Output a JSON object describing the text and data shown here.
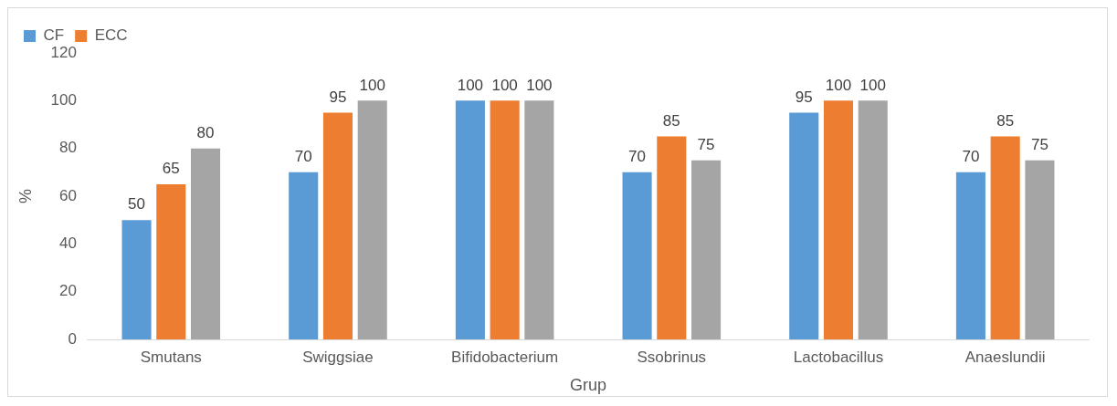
{
  "chart_data": {
    "type": "bar",
    "xlabel": "Grup",
    "ylabel": "%",
    "categories": [
      "Smutans",
      "Swiggsiae",
      "Bifidobacterium",
      "Ssobrinus",
      "Lactobacillus",
      "Anaeslundii"
    ],
    "series": [
      {
        "name": "CF",
        "color": "#5b9bd5",
        "values": [
          50,
          70,
          100,
          70,
          95,
          70
        ]
      },
      {
        "name": "ECC",
        "color": "#ed7d31",
        "values": [
          65,
          95,
          100,
          85,
          100,
          85
        ]
      },
      {
        "color": "#a5a5a5",
        "values": [
          80,
          100,
          100,
          75,
          100,
          75
        ]
      }
    ],
    "ylim": [
      0,
      120
    ],
    "yticks": [
      0,
      20,
      40,
      60,
      80,
      100,
      120
    ],
    "grid": false,
    "legend": "top left",
    "data_labels": true
  }
}
